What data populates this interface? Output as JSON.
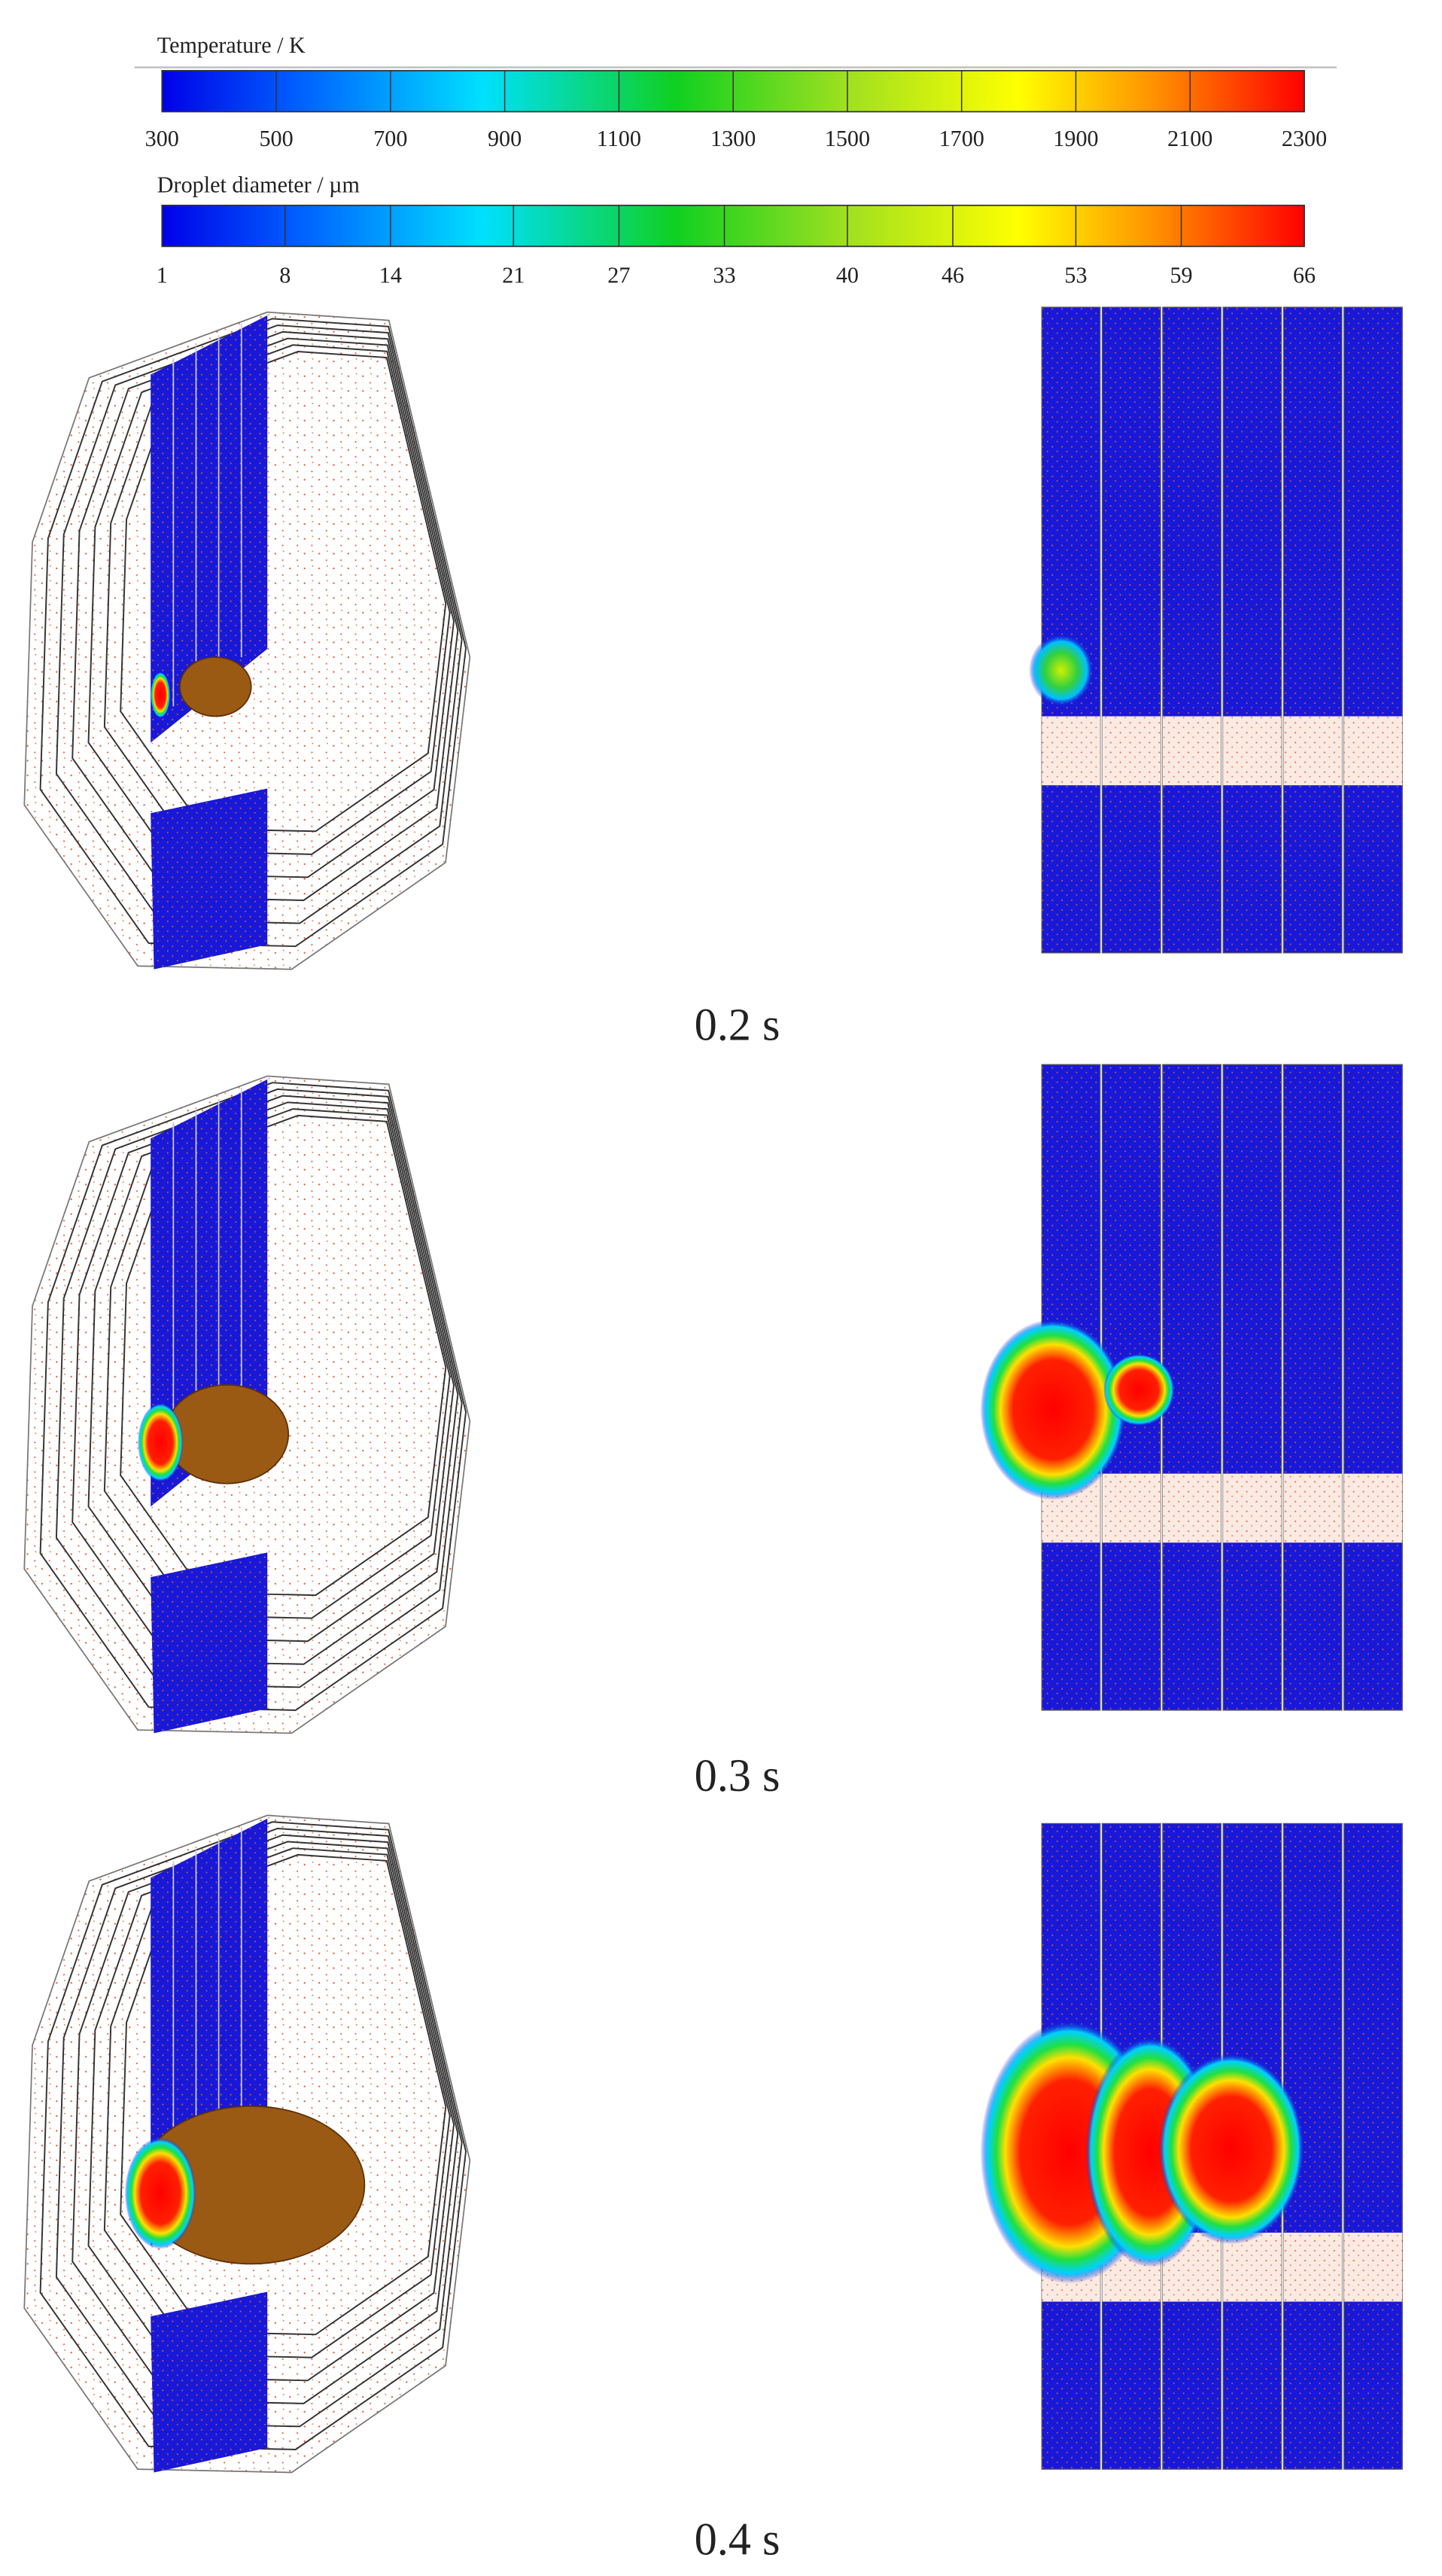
{
  "colorbars": [
    {
      "title": "Temperature / K",
      "lim": [
        300,
        2300
      ],
      "ticks": [
        300,
        500,
        700,
        900,
        1100,
        1300,
        1500,
        1700,
        1900,
        2100,
        2300
      ]
    },
    {
      "title": "Droplet diameter / µm",
      "lim": [
        1,
        66
      ],
      "ticks": [
        1,
        8,
        14,
        21,
        27,
        33,
        40,
        46,
        53,
        59,
        66
      ]
    }
  ],
  "panels": [
    {
      "label": "0.2 s"
    },
    {
      "label": "0.3 s"
    },
    {
      "label": "0.4 s"
    }
  ]
}
